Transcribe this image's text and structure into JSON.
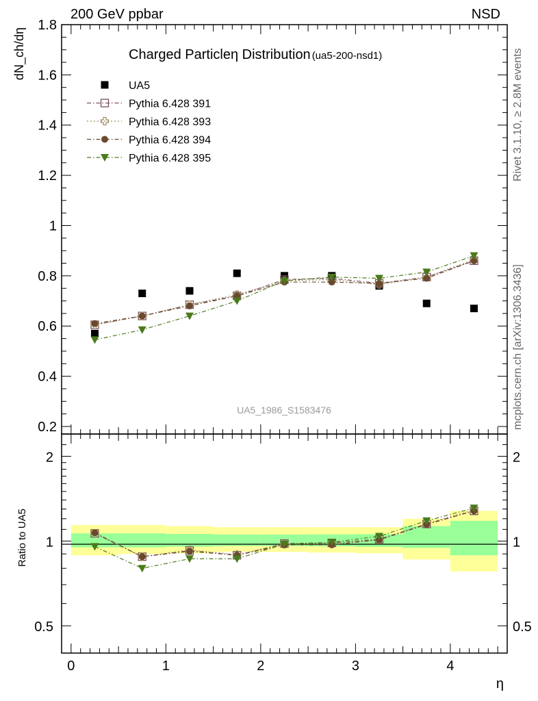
{
  "header": {
    "left": "200 GeV ppbar",
    "right": "NSD"
  },
  "side_text": {
    "upper": "Rivet 3.1.10, ≥ 2.8M events",
    "lower": "mcplots.cern.ch [arXiv:1306.3436]"
  },
  "chart_data": [
    {
      "type": "scatter",
      "title": "Charged Particleη Distribution",
      "title_suffix": "(ua5-200-nsd1)",
      "watermark": "UA5_1986_S1583476",
      "ylabel": "dN_ch/dη",
      "xlim": [
        -0.1,
        4.6
      ],
      "ylim": [
        0.17,
        1.8
      ],
      "yticks": [
        "0.2",
        "0.4",
        "0.6",
        "0.8",
        "1",
        "1.2",
        "1.4",
        "1.6",
        "1.8"
      ],
      "x": [
        0.25,
        0.75,
        1.25,
        1.75,
        2.25,
        2.75,
        3.25,
        3.75,
        4.25
      ],
      "series": [
        {
          "name": "UA5",
          "marker": "square",
          "color": "#000000",
          "style": "data",
          "values": [
            0.57,
            0.73,
            0.74,
            0.81,
            0.8,
            0.8,
            0.76,
            0.69,
            0.67
          ]
        },
        {
          "name": "Pythia 6.428 391",
          "marker": "open-square",
          "color": "#7a4e5e",
          "style": "dashdot",
          "values": [
            0.605,
            0.64,
            0.685,
            0.72,
            0.785,
            0.79,
            0.77,
            0.795,
            0.86
          ]
        },
        {
          "name": "Pythia 6.428 393",
          "marker": "open-cross",
          "color": "#9c8c5e",
          "style": "dotted",
          "values": [
            0.605,
            0.64,
            0.685,
            0.725,
            0.78,
            0.785,
            0.765,
            0.795,
            0.865
          ]
        },
        {
          "name": "Pythia 6.428 394",
          "marker": "circle",
          "color": "#6a4a2e",
          "style": "dashdot",
          "values": [
            0.61,
            0.64,
            0.68,
            0.72,
            0.775,
            0.775,
            0.77,
            0.79,
            0.86
          ]
        },
        {
          "name": "Pythia 6.428 395",
          "marker": "triangle-down",
          "color": "#4a7a1a",
          "style": "dashdot",
          "values": [
            0.545,
            0.585,
            0.64,
            0.7,
            0.78,
            0.795,
            0.79,
            0.815,
            0.88
          ]
        }
      ]
    },
    {
      "type": "line",
      "ylabel": "Ratio to UA5",
      "xlabel": "η",
      "scale": "log",
      "xlim": [
        -0.1,
        4.6
      ],
      "ylim": [
        0.4,
        2.4
      ],
      "yticks": [
        "0.5",
        "1",
        "2"
      ],
      "xticks": [
        "0",
        "1",
        "2",
        "3",
        "4"
      ],
      "bins": [
        [
          0,
          0.5
        ],
        [
          0.5,
          1.0
        ],
        [
          1.0,
          1.5
        ],
        [
          1.5,
          2.0
        ],
        [
          2.0,
          2.5
        ],
        [
          2.5,
          3.0
        ],
        [
          3.0,
          3.5
        ],
        [
          3.5,
          4.0
        ],
        [
          4.0,
          4.5
        ]
      ],
      "band_inner": [
        [
          0.95,
          1.065
        ],
        [
          0.95,
          1.065
        ],
        [
          0.955,
          1.06
        ],
        [
          0.96,
          1.055
        ],
        [
          0.96,
          1.055
        ],
        [
          0.958,
          1.056
        ],
        [
          0.953,
          1.058
        ],
        [
          0.945,
          1.13
        ],
        [
          0.89,
          1.18
        ]
      ],
      "band_outer": [
        [
          0.89,
          1.14
        ],
        [
          0.9,
          1.14
        ],
        [
          0.905,
          1.13
        ],
        [
          0.915,
          1.12
        ],
        [
          0.915,
          1.12
        ],
        [
          0.91,
          1.12
        ],
        [
          0.905,
          1.12
        ],
        [
          0.86,
          1.2
        ],
        [
          0.78,
          1.28
        ]
      ],
      "band_inner_color": "#99ff99",
      "band_outer_color": "#ffff99",
      "x": [
        0.25,
        0.75,
        1.25,
        1.75,
        2.25,
        2.75,
        3.25,
        3.75,
        4.25
      ],
      "series": [
        {
          "name": "Pythia 6.428 391",
          "values": [
            1.065,
            0.88,
            0.925,
            0.89,
            0.98,
            0.985,
            1.015,
            1.15,
            1.28
          ]
        },
        {
          "name": "Pythia 6.428 393",
          "values": [
            1.065,
            0.88,
            0.93,
            0.895,
            0.975,
            0.98,
            1.01,
            1.155,
            1.29
          ]
        },
        {
          "name": "Pythia 6.428 394",
          "values": [
            1.07,
            0.88,
            0.92,
            0.89,
            0.97,
            0.97,
            1.01,
            1.145,
            1.28
          ]
        },
        {
          "name": "Pythia 6.428 395",
          "values": [
            0.956,
            0.8,
            0.865,
            0.865,
            0.975,
            0.99,
            1.04,
            1.18,
            1.31
          ]
        }
      ]
    }
  ]
}
